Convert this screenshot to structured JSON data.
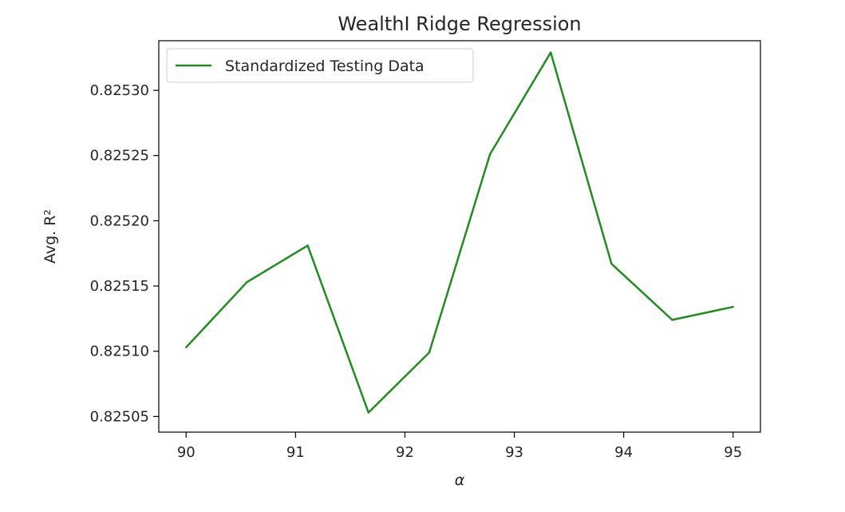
{
  "chart_data": {
    "type": "line",
    "title": "WealthI Ridge Regression",
    "xlabel": "α",
    "ylabel": "Avg. R²",
    "xlim": [
      89.75,
      95.25
    ],
    "ylim": [
      0.825038,
      0.825338
    ],
    "x_ticks": [
      "90",
      "91",
      "92",
      "93",
      "94",
      "95"
    ],
    "x_tick_values": [
      90,
      91,
      92,
      93,
      94,
      95
    ],
    "y_ticks": [
      "0.82505",
      "0.82510",
      "0.82515",
      "0.82520",
      "0.82525",
      "0.82530"
    ],
    "y_tick_values": [
      0.82505,
      0.8251,
      0.82515,
      0.8252,
      0.82525,
      0.8253
    ],
    "grid": false,
    "legend_position": "upper-left",
    "series": [
      {
        "name": "Standardized Testing Data",
        "color": "#228b22",
        "x": [
          90.0,
          90.556,
          91.111,
          91.667,
          92.222,
          92.778,
          93.333,
          93.889,
          94.444,
          95.0
        ],
        "y": [
          0.825103,
          0.825153,
          0.825181,
          0.825053,
          0.825099,
          0.825251,
          0.825329,
          0.825167,
          0.825124,
          0.825134
        ]
      }
    ]
  }
}
